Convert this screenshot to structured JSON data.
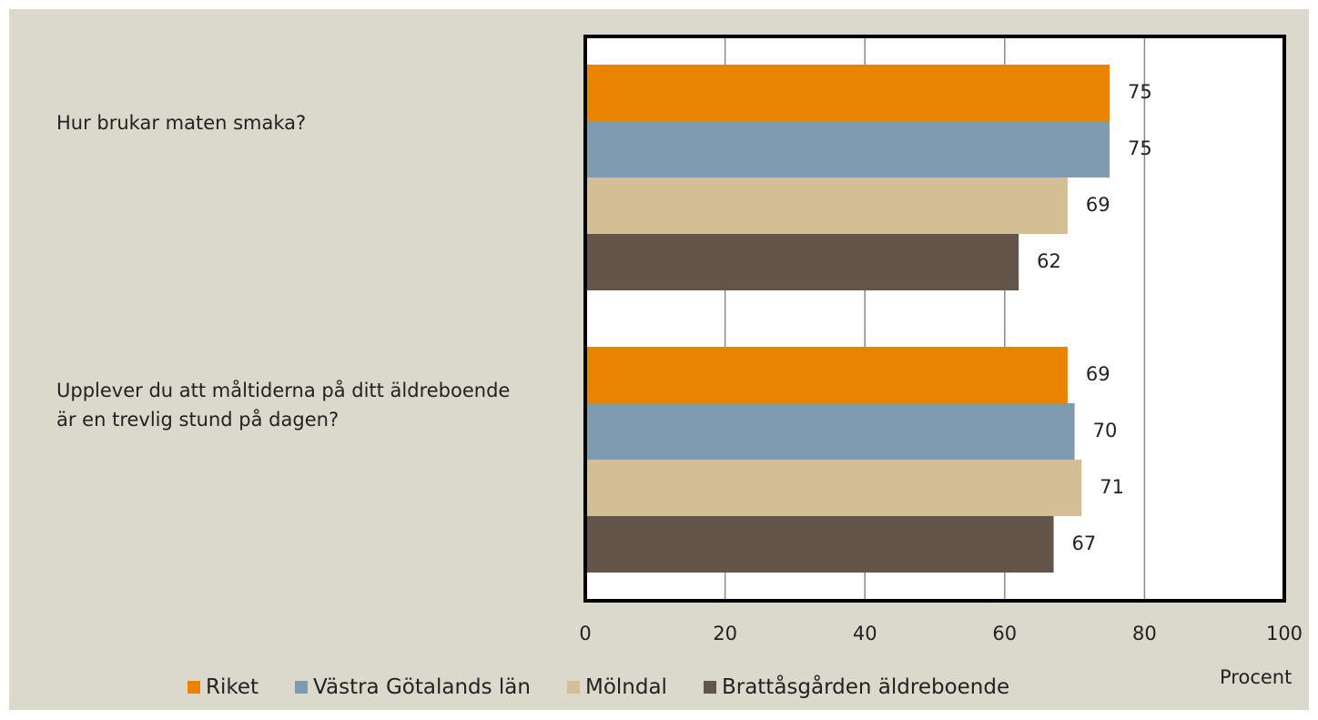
{
  "chart_data": {
    "type": "bar",
    "orientation": "horizontal",
    "categories": [
      "Hur brukar maten smaka?",
      "Upplever du att måltiderna på ditt äldreboende är en trevlig stund på dagen?"
    ],
    "series": [
      {
        "name": "Riket",
        "color": "#e98300",
        "values": [
          75,
          69
        ]
      },
      {
        "name": "Västra Götalands län",
        "color": "#7f9baf",
        "values": [
          75,
          70
        ]
      },
      {
        "name": "Mölndal",
        "color": "#d4bf95",
        "values": [
          69,
          71
        ]
      },
      {
        "name": "Brattåsgården äldreboende",
        "color": "#63554a",
        "values": [
          62,
          67
        ]
      }
    ],
    "xlabel": "Procent",
    "xlim": [
      0,
      100
    ],
    "xticks": [
      0,
      20,
      40,
      60,
      80,
      100
    ],
    "grid": true,
    "legend": "bottom"
  }
}
